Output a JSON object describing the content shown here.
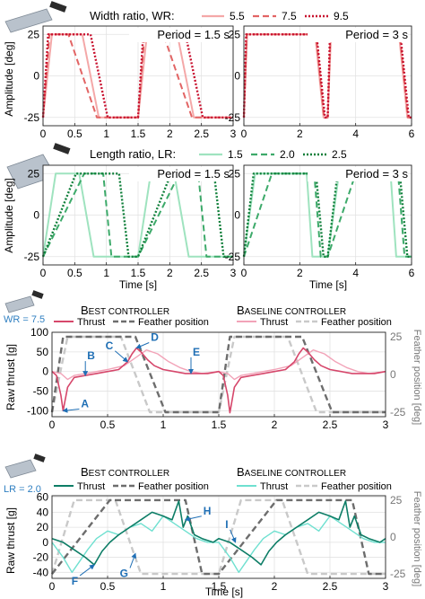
{
  "colors": {
    "wr_55": "#f4a8a8",
    "wr_75": "#e26464",
    "wr_95": "#c8102e",
    "lr_15": "#9fe3bf",
    "lr_20": "#3daa6a",
    "lr_25": "#0f7f3a",
    "thrust_a_best": "#d6476b",
    "thrust_a_base": "#f2a3b8",
    "thrust_b_best": "#0d7d66",
    "thrust_b_base": "#6fe0d0",
    "feather_best": "#6d6d6d",
    "feather_base": "#c9c9c9",
    "annotation": "#1f6fb5",
    "wr_label": "#2f7fc1"
  },
  "icons": [
    "wing-wide-icon",
    "wing-long-icon",
    "wing-small-icon",
    "wing-small-icon"
  ],
  "shared": {
    "time_label": "Time [s]",
    "amp_label": "Amplitude [deg]",
    "x_ticks": [
      "0",
      "0.5",
      "1",
      "1.5",
      "2",
      "2.5",
      "3"
    ],
    "x_ticks_6": [
      "0",
      "2",
      "4",
      "6"
    ],
    "amp_ticks": [
      "25",
      "0",
      "-25"
    ]
  },
  "chart_data": [
    {
      "type": "line",
      "id": "wr-1.5",
      "title": "Period = 1.5 s",
      "legend_title": "Width ratio, WR:",
      "ylabel": "Amplitude [deg]",
      "xlim": [
        0,
        3
      ],
      "ylim": [
        -30,
        30
      ],
      "grid": true,
      "legend_placement": "top",
      "series": [
        {
          "name": "5.5",
          "style": "solid",
          "color_key": "wr_55",
          "x": [
            0,
            0.14,
            0.62,
            0.88,
            1.5,
            1.64,
            2.12,
            2.38,
            3.0
          ],
          "y": [
            -25,
            25,
            25,
            -25,
            -25,
            25,
            25,
            -25,
            -25
          ]
        },
        {
          "name": "7.5",
          "style": "dashed",
          "color_key": "wr_75",
          "x": [
            0,
            0.1,
            0.4,
            0.85,
            1.5,
            1.6,
            1.9,
            2.35,
            3.0
          ],
          "y": [
            -25,
            25,
            25,
            -25,
            -25,
            25,
            25,
            -25,
            -25
          ]
        },
        {
          "name": "9.5",
          "style": "dotted",
          "color_key": "wr_95",
          "x": [
            0,
            0.08,
            0.75,
            1.02,
            1.5,
            1.58,
            2.25,
            2.52,
            3.0
          ],
          "y": [
            -25,
            25,
            25,
            -25,
            -25,
            25,
            25,
            -25,
            -25
          ]
        }
      ]
    },
    {
      "type": "line",
      "id": "wr-3",
      "title": "Period = 3 s",
      "xlim": [
        0,
        6
      ],
      "ylim": [
        -30,
        30
      ],
      "grid": true,
      "series": [
        {
          "name": "5.5",
          "style": "solid",
          "color_key": "wr_55",
          "x": [
            0,
            0.12,
            2.55,
            2.85,
            3.0,
            3.12,
            5.55,
            5.85,
            6.0
          ],
          "y": [
            -25,
            25,
            25,
            -25,
            -25,
            25,
            25,
            -25,
            -25
          ]
        },
        {
          "name": "7.5",
          "style": "dashed",
          "color_key": "wr_75",
          "x": [
            0,
            0.1,
            2.58,
            2.87,
            3.0,
            3.1,
            5.58,
            5.87,
            6.0
          ],
          "y": [
            -25,
            25,
            25,
            -25,
            -25,
            25,
            25,
            -25,
            -25
          ]
        },
        {
          "name": "9.5",
          "style": "dotted",
          "color_key": "wr_95",
          "x": [
            0,
            0.08,
            2.6,
            2.9,
            3.0,
            3.08,
            5.6,
            5.9,
            6.0
          ],
          "y": [
            -25,
            25,
            25,
            -25,
            -25,
            25,
            25,
            -25,
            -25
          ]
        }
      ]
    },
    {
      "type": "line",
      "id": "lr-1.5",
      "title": "Period = 1.5 s",
      "legend_title": "Length ratio, LR:",
      "xlabel": "Time [s]",
      "ylabel": "Amplitude [deg]",
      "xlim": [
        0,
        3
      ],
      "ylim": [
        -30,
        30
      ],
      "grid": true,
      "legend_placement": "top",
      "series": [
        {
          "name": "1.5",
          "style": "solid",
          "color_key": "lr_15",
          "x": [
            0,
            0.2,
            0.57,
            0.8,
            1.42,
            1.5,
            1.7,
            2.07,
            2.3,
            2.92,
            3.0
          ],
          "y": [
            -25,
            25,
            25,
            -25,
            -25,
            -25,
            25,
            25,
            -25,
            -25,
            -25
          ]
        },
        {
          "name": "2.0",
          "style": "dashed",
          "color_key": "lr_20",
          "x": [
            0,
            0.65,
            0.95,
            1.08,
            1.5,
            2.15,
            2.45,
            2.58,
            3.0
          ],
          "y": [
            -25,
            25,
            25,
            -25,
            -25,
            25,
            25,
            -25,
            -25
          ]
        },
        {
          "name": "2.5",
          "style": "dotted",
          "color_key": "lr_25",
          "x": [
            0,
            0.52,
            1.2,
            1.35,
            1.5,
            2.02,
            2.7,
            2.85,
            3.0
          ],
          "y": [
            -25,
            25,
            25,
            -25,
            -25,
            25,
            25,
            -25,
            -25
          ]
        }
      ]
    },
    {
      "type": "line",
      "id": "lr-3",
      "title": "Period = 3 s",
      "xlabel": "Time [s]",
      "xlim": [
        0,
        6
      ],
      "ylim": [
        -30,
        30
      ],
      "grid": true,
      "series": [
        {
          "name": "1.5",
          "style": "solid",
          "color_key": "lr_15",
          "x": [
            0,
            0.4,
            2.25,
            2.45,
            2.92,
            3.0,
            3.4,
            5.25,
            5.45,
            5.92,
            6.0
          ],
          "y": [
            -25,
            25,
            25,
            -25,
            -25,
            -25,
            25,
            25,
            -25,
            -25,
            -25
          ]
        },
        {
          "name": "2.0",
          "style": "dashed",
          "color_key": "lr_20",
          "x": [
            0,
            1.0,
            2.52,
            2.75,
            3.0,
            4.0,
            5.52,
            5.75,
            6.0
          ],
          "y": [
            -25,
            25,
            25,
            -25,
            -25,
            25,
            25,
            -25,
            -25
          ]
        },
        {
          "name": "2.5",
          "style": "dotted",
          "color_key": "lr_25",
          "x": [
            0,
            0.35,
            2.58,
            2.85,
            3.0,
            3.35,
            5.58,
            5.85,
            6.0
          ],
          "y": [
            -25,
            25,
            25,
            -25,
            -25,
            25,
            25,
            -25,
            -25
          ]
        }
      ]
    },
    {
      "type": "line",
      "id": "thrust-wr",
      "wing_label": "WR = 7.5",
      "best_title": {
        "lead": "B",
        "rest": "EST CONTROLLER"
      },
      "base_title": {
        "lead": "B",
        "rest": "ASELINE CONTROLLER"
      },
      "legend": {
        "thrust": "Thrust",
        "feather": "Feather position"
      },
      "ylabel": "Raw thrust [g]",
      "y2label": "Feather position [deg]",
      "xlim": [
        0,
        3
      ],
      "ylim": [
        -115,
        100
      ],
      "y2lim": [
        -28,
        28
      ],
      "y_ticks": [
        -100,
        -50,
        0,
        50,
        100
      ],
      "y2_ticks": [
        -25,
        0,
        25
      ],
      "grid": true,
      "thrust_best": {
        "x": [
          0,
          0.04,
          0.08,
          0.1,
          0.14,
          0.2,
          0.3,
          0.4,
          0.5,
          0.6,
          0.68,
          0.72,
          0.76,
          0.8,
          0.86,
          0.92,
          1.0,
          1.1,
          1.2,
          1.3,
          1.4,
          1.5,
          1.54,
          1.58,
          1.6,
          1.64,
          1.7,
          1.8,
          1.9,
          2.0,
          2.1,
          2.18,
          2.22,
          2.26,
          2.3,
          2.36,
          2.42,
          2.5,
          2.6,
          2.7,
          2.8,
          2.9,
          3.0
        ],
        "y": [
          0,
          -10,
          -60,
          -100,
          -40,
          -15,
          -10,
          -5,
          0,
          5,
          25,
          45,
          60,
          50,
          30,
          15,
          5,
          0,
          -5,
          -5,
          -5,
          0,
          -10,
          -60,
          -105,
          -40,
          -15,
          -10,
          -5,
          0,
          5,
          25,
          45,
          60,
          50,
          30,
          15,
          5,
          0,
          -5,
          -5,
          -5,
          0
        ]
      },
      "thrust_baseline": {
        "x": [
          0,
          0.08,
          0.14,
          0.2,
          0.3,
          0.5,
          0.65,
          0.75,
          0.85,
          0.95,
          1.05,
          1.15,
          1.25,
          1.35,
          1.5,
          1.58,
          1.64,
          1.7,
          1.8,
          2.0,
          2.15,
          2.25,
          2.35,
          2.45,
          2.55,
          2.65,
          2.75,
          2.85,
          3.0
        ],
        "y": [
          0,
          -5,
          -20,
          -10,
          -5,
          5,
          15,
          35,
          55,
          45,
          25,
          10,
          0,
          -5,
          0,
          -5,
          -20,
          -10,
          -5,
          5,
          15,
          35,
          55,
          45,
          25,
          10,
          0,
          -5,
          0
        ]
      },
      "feather_best": {
        "x": [
          0,
          0.1,
          0.75,
          1.02,
          1.5,
          1.6,
          2.25,
          2.52,
          3.0
        ],
        "y": [
          -25,
          25,
          25,
          -25,
          -25,
          25,
          25,
          -25,
          -25
        ]
      },
      "feather_baseline": {
        "x": [
          0,
          0.14,
          0.62,
          0.88,
          1.5,
          1.64,
          2.12,
          2.38,
          3.0
        ],
        "y": [
          -25,
          25,
          25,
          -25,
          -25,
          25,
          25,
          -25,
          -25
        ]
      },
      "annotations": [
        {
          "label": "A",
          "x": 0.1,
          "y": -100,
          "dx": 18,
          "dy": -2
        },
        {
          "label": "B",
          "x": 0.3,
          "y": -10,
          "dx": 0,
          "dy": -16
        },
        {
          "label": "C",
          "x": 0.68,
          "y": 25,
          "dx": -14,
          "dy": -12
        },
        {
          "label": "D",
          "x": 0.76,
          "y": 60,
          "dx": 14,
          "dy": -6
        },
        {
          "label": "E",
          "x": 1.25,
          "y": -5,
          "dx": 0,
          "dy": -18
        }
      ]
    },
    {
      "type": "line",
      "id": "thrust-lr",
      "wing_label": "LR = 2.0",
      "best_title": {
        "lead": "B",
        "rest": "EST CONTROLLER"
      },
      "base_title": {
        "lead": "B",
        "rest": "ASELINE CONTROLLER"
      },
      "legend": {
        "thrust": "Thrust",
        "feather": "Feather position"
      },
      "xlabel": "Time [s]",
      "ylabel": "Raw thrust [g]",
      "y2label": "Feather position [deg]",
      "xlim": [
        0,
        3
      ],
      "ylim": [
        -48,
        62
      ],
      "y2lim": [
        -28,
        28
      ],
      "y_ticks": [
        -40,
        -20,
        0,
        20,
        40,
        60
      ],
      "y2_ticks": [
        -25,
        0,
        25
      ],
      "grid": true,
      "thrust_best": {
        "x": [
          0,
          0.1,
          0.2,
          0.3,
          0.38,
          0.45,
          0.52,
          0.6,
          0.7,
          0.8,
          0.9,
          1.0,
          1.08,
          1.14,
          1.18,
          1.22,
          1.28,
          1.35,
          1.45,
          1.5,
          1.6,
          1.7,
          1.8,
          1.88,
          1.95,
          2.02,
          2.1,
          2.2,
          2.3,
          2.4,
          2.5,
          2.58,
          2.64,
          2.68,
          2.72,
          2.78,
          2.85,
          2.95,
          3.0
        ],
        "y": [
          5,
          0,
          -10,
          -20,
          -30,
          -12,
          0,
          10,
          20,
          30,
          40,
          35,
          30,
          55,
          20,
          35,
          10,
          5,
          0,
          5,
          0,
          -10,
          -20,
          -30,
          -12,
          0,
          10,
          20,
          30,
          40,
          35,
          30,
          55,
          20,
          35,
          10,
          5,
          0,
          5
        ]
      },
      "thrust_baseline": {
        "x": [
          0,
          0.1,
          0.18,
          0.25,
          0.32,
          0.4,
          0.5,
          0.6,
          0.7,
          0.8,
          0.9,
          1.0,
          1.1,
          1.2,
          1.3,
          1.4,
          1.5,
          1.6,
          1.68,
          1.75,
          1.82,
          1.9,
          2.0,
          2.1,
          2.2,
          2.3,
          2.4,
          2.5,
          2.6,
          2.7,
          2.8,
          2.9,
          3.0
        ],
        "y": [
          0,
          -20,
          -40,
          -25,
          -10,
          5,
          15,
          10,
          20,
          25,
          15,
          35,
          25,
          15,
          5,
          0,
          0,
          -20,
          -40,
          -25,
          -10,
          5,
          15,
          10,
          20,
          25,
          15,
          35,
          25,
          15,
          5,
          0,
          0
        ]
      },
      "feather_best": {
        "x": [
          0,
          0.52,
          1.2,
          1.35,
          1.5,
          2.02,
          2.7,
          2.85,
          3.0
        ],
        "y": [
          -25,
          25,
          25,
          -25,
          -25,
          25,
          25,
          -25,
          -25
        ]
      },
      "feather_baseline": {
        "x": [
          0,
          0.2,
          0.57,
          0.8,
          1.5,
          1.7,
          2.07,
          2.3,
          3.0
        ],
        "y": [
          -25,
          25,
          25,
          -25,
          -25,
          25,
          25,
          -25,
          -25
        ]
      },
      "annotations": [
        {
          "label": "F",
          "x": 0.38,
          "y": -30,
          "dx": -16,
          "dy": 12
        },
        {
          "label": "G",
          "x": 0.75,
          "y": -15,
          "dx": -6,
          "dy": 16
        },
        {
          "label": "H",
          "x": 1.2,
          "y": 30,
          "dx": 18,
          "dy": -4
        },
        {
          "label": "I",
          "x": 1.65,
          "y": 0,
          "dx": -6,
          "dy": -14
        }
      ]
    }
  ]
}
